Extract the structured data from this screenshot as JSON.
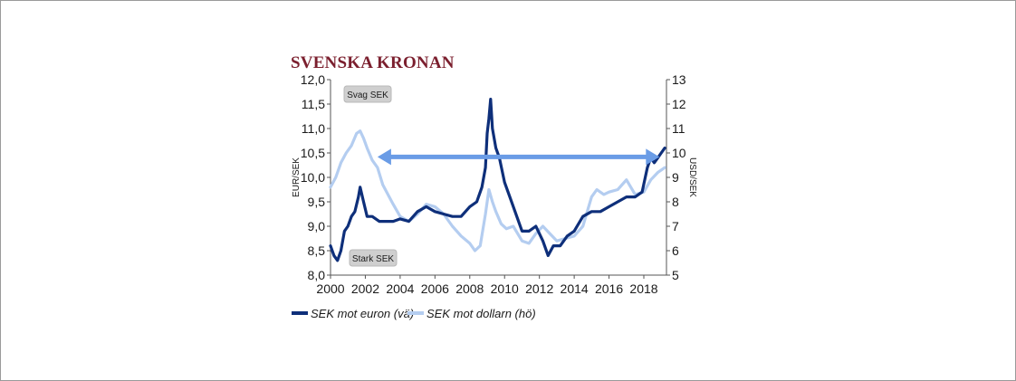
{
  "chart_data": {
    "type": "line",
    "title": "SVENSKA KRONAN",
    "ylabel_left": "EUR/SEK",
    "ylabel_right": "USD/SEK",
    "ylim_left": [
      8.0,
      12.0
    ],
    "ylim_right": [
      5,
      13
    ],
    "yticks_left": [
      "8,0",
      "8,5",
      "9,0",
      "9,5",
      "10,0",
      "10,5",
      "11,0",
      "11,5",
      "12,0"
    ],
    "yticks_right": [
      "5",
      "6",
      "7",
      "8",
      "9",
      "10",
      "11",
      "12",
      "13"
    ],
    "xlim": [
      2000,
      2019.3
    ],
    "xticks": [
      "2000",
      "2002",
      "2004",
      "2006",
      "2008",
      "2010",
      "2012",
      "2014",
      "2016",
      "2018"
    ],
    "grid": false,
    "legend_position": "bottom",
    "annotations": {
      "weak_label": "Svag SEK",
      "strong_label": "Stark SEK",
      "arrow": {
        "from_x": 2018.9,
        "to_x": 2002.7,
        "y_left": 10.42
      }
    },
    "colors": {
      "euro": "#0e2f7a",
      "dollar": "#b4cdf0",
      "arrow": "#6a9ce6",
      "title": "#7b1f2e"
    },
    "series": [
      {
        "name": "SEK mot euron (vä)",
        "axis": "left",
        "x": [
          2000.0,
          2000.2,
          2000.4,
          2000.6,
          2000.8,
          2001.0,
          2001.2,
          2001.4,
          2001.6,
          2001.7,
          2001.9,
          2002.1,
          2002.4,
          2002.8,
          2003.2,
          2003.6,
          2004.0,
          2004.5,
          2005.0,
          2005.5,
          2006.0,
          2006.5,
          2007.0,
          2007.5,
          2008.0,
          2008.4,
          2008.7,
          2008.9,
          2009.0,
          2009.1,
          2009.2,
          2009.3,
          2009.5,
          2009.7,
          2010.0,
          2010.3,
          2010.6,
          2011.0,
          2011.4,
          2011.8,
          2012.2,
          2012.5,
          2012.8,
          2013.2,
          2013.6,
          2014.0,
          2014.5,
          2015.0,
          2015.5,
          2016.0,
          2016.5,
          2017.0,
          2017.5,
          2017.9,
          2018.2,
          2018.4,
          2018.6,
          2018.8,
          2019.0,
          2019.2
        ],
        "y": [
          8.6,
          8.4,
          8.3,
          8.5,
          8.9,
          9.0,
          9.2,
          9.3,
          9.6,
          9.8,
          9.5,
          9.2,
          9.2,
          9.1,
          9.1,
          9.1,
          9.15,
          9.1,
          9.3,
          9.4,
          9.3,
          9.25,
          9.2,
          9.2,
          9.4,
          9.5,
          9.8,
          10.2,
          10.9,
          11.2,
          11.6,
          11.0,
          10.6,
          10.4,
          9.9,
          9.6,
          9.3,
          8.9,
          8.9,
          9.0,
          8.7,
          8.4,
          8.6,
          8.6,
          8.8,
          8.9,
          9.2,
          9.3,
          9.3,
          9.4,
          9.5,
          9.6,
          9.6,
          9.7,
          10.2,
          10.4,
          10.3,
          10.4,
          10.5,
          10.6
        ]
      },
      {
        "name": "SEK mot dollarn (hö)",
        "axis": "right",
        "x": [
          2000.0,
          2000.3,
          2000.6,
          2000.9,
          2001.2,
          2001.5,
          2001.7,
          2001.9,
          2002.1,
          2002.4,
          2002.7,
          2003.0,
          2003.3,
          2003.6,
          2004.0,
          2004.5,
          2005.0,
          2005.5,
          2006.0,
          2006.5,
          2007.0,
          2007.5,
          2008.0,
          2008.3,
          2008.6,
          2008.9,
          2009.1,
          2009.3,
          2009.5,
          2009.8,
          2010.1,
          2010.5,
          2011.0,
          2011.4,
          2011.8,
          2012.2,
          2012.6,
          2013.0,
          2013.5,
          2014.0,
          2014.5,
          2015.0,
          2015.3,
          2015.7,
          2016.0,
          2016.5,
          2017.0,
          2017.5,
          2018.0,
          2018.4,
          2018.8,
          2019.2
        ],
        "y": [
          8.6,
          9.0,
          9.6,
          10.0,
          10.3,
          10.8,
          10.9,
          10.6,
          10.2,
          9.7,
          9.4,
          8.7,
          8.3,
          7.9,
          7.4,
          7.2,
          7.5,
          7.9,
          7.8,
          7.5,
          7.0,
          6.6,
          6.3,
          6.0,
          6.2,
          7.5,
          8.5,
          8.0,
          7.6,
          7.1,
          6.9,
          7.0,
          6.4,
          6.3,
          6.7,
          7.0,
          6.7,
          6.4,
          6.5,
          6.6,
          7.0,
          8.2,
          8.5,
          8.3,
          8.4,
          8.5,
          8.9,
          8.3,
          8.4,
          8.9,
          9.2,
          9.4
        ]
      }
    ]
  }
}
